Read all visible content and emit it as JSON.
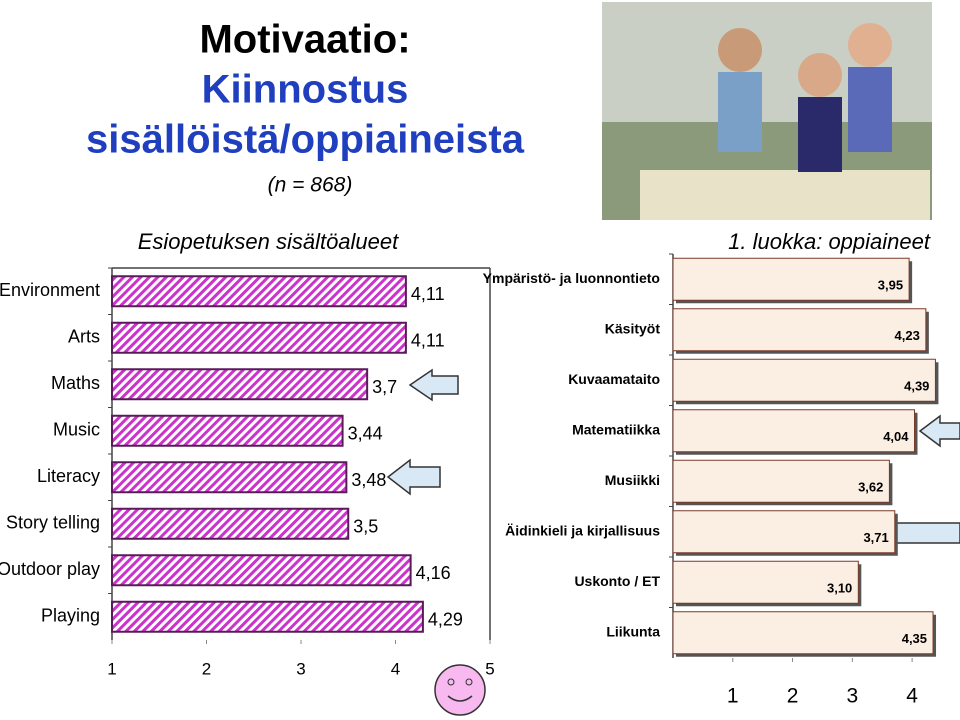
{
  "slide": {
    "title": "Motivaatio:",
    "title_line2": "Kiinnostus",
    "title_line3": "sisällöistä/oppiaineista",
    "sample": "(n = 868)"
  },
  "chart_data": [
    {
      "type": "bar",
      "orientation": "horizontal",
      "title": "Esiopetuksen sisältöalueet",
      "categories": [
        "Environment",
        "Arts",
        "Maths",
        "Music",
        "Literacy",
        "Story telling",
        "Outdoor play",
        "Playing"
      ],
      "values": [
        4.11,
        4.11,
        3.7,
        3.44,
        3.48,
        3.5,
        4.16,
        4.29
      ],
      "value_labels": [
        "4,11",
        "4,11",
        "3,7",
        "3,44",
        "3,48",
        "3,5",
        "4,16",
        "4,29"
      ],
      "color": "#cc33cc",
      "xlim": [
        1,
        5
      ],
      "xticks": [
        1,
        2,
        3,
        4,
        5
      ]
    },
    {
      "type": "bar",
      "orientation": "horizontal",
      "title": "1. luokka: oppiaineet",
      "categories": [
        "Ympäristö- ja luonnontieto",
        "Käsityöt",
        "Kuvaamataito",
        "Matematiikka",
        "Musiikki",
        "Äidinkieli ja kirjallisuus",
        "Uskonto / ET",
        "Liikunta"
      ],
      "values": [
        3.95,
        4.23,
        4.39,
        4.04,
        3.62,
        3.71,
        3.1,
        4.35
      ],
      "value_labels": [
        "3,95",
        "4,23",
        "4,39",
        "4,04",
        "3,62",
        "3,71",
        "3,10",
        "4,35"
      ],
      "color": "#fbeee2",
      "xlim": [
        0,
        4.5
      ],
      "xticks": [
        1,
        2,
        3,
        4
      ]
    }
  ]
}
